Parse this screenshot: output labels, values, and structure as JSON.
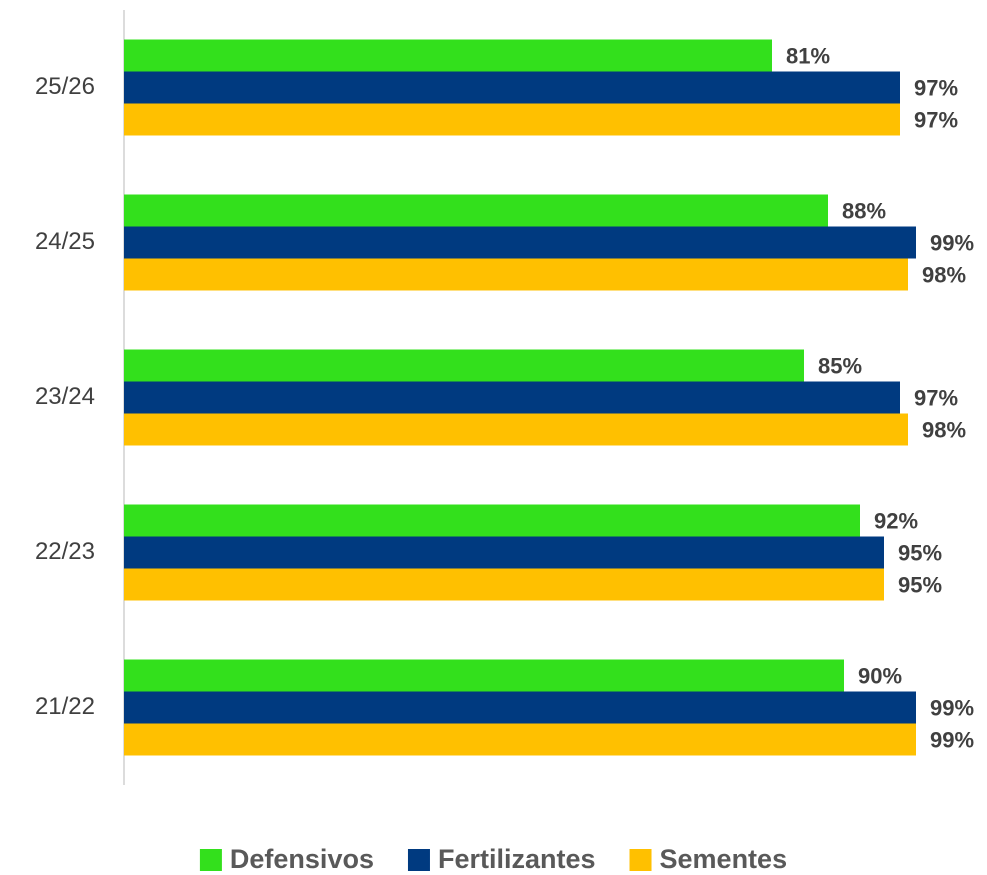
{
  "chart_data": {
    "type": "bar",
    "orientation": "horizontal",
    "categories": [
      "25/26",
      "24/25",
      "23/24",
      "22/23",
      "21/22"
    ],
    "series": [
      {
        "name": "Defensivos",
        "color": "#33e01c",
        "values": [
          81,
          88,
          85,
          92,
          90
        ],
        "value_labels": [
          "81%",
          "88%",
          "85%",
          "92%",
          "90%"
        ]
      },
      {
        "name": "Fertilizantes",
        "color": "#003a80",
        "values": [
          97,
          99,
          97,
          95,
          99
        ],
        "value_labels": [
          "97%",
          "99%",
          "97%",
          "95%",
          "99%"
        ]
      },
      {
        "name": "Sementes",
        "color": "#ffc000",
        "values": [
          97,
          98,
          98,
          95,
          99
        ],
        "value_labels": [
          "97%",
          "98%",
          "98%",
          "95%",
          "99%"
        ]
      }
    ],
    "xlim": [
      0,
      100
    ],
    "legend": "bottom"
  }
}
